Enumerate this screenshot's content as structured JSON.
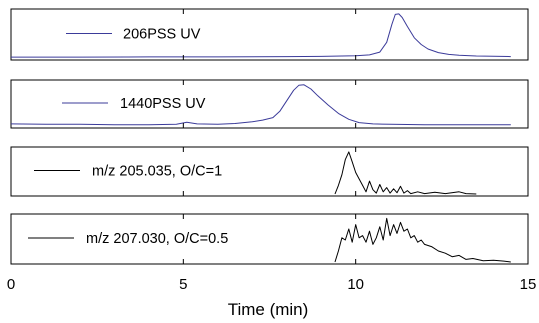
{
  "chart_data": {
    "type": "line",
    "xlabel": "Time (min)",
    "xlim": [
      0,
      15
    ],
    "x_ticks": [
      "0",
      "5",
      "10",
      "15"
    ],
    "panels": [
      {
        "legend": "206PSS UV",
        "color": "#3b3b9a",
        "ylim": [
          0,
          1
        ],
        "x": [
          0,
          2,
          4,
          6,
          8,
          9,
          10,
          10.4,
          10.7,
          10.9,
          11.05,
          11.15,
          11.25,
          11.35,
          11.5,
          11.7,
          11.9,
          12.1,
          12.4,
          12.7,
          13,
          13.5,
          14,
          14.5
        ],
        "y": [
          0.02,
          0.02,
          0.025,
          0.025,
          0.03,
          0.035,
          0.05,
          0.07,
          0.13,
          0.35,
          0.75,
          0.97,
          0.98,
          0.9,
          0.7,
          0.45,
          0.3,
          0.2,
          0.12,
          0.08,
          0.06,
          0.045,
          0.04,
          0.03
        ]
      },
      {
        "legend": "1440PSS UV",
        "color": "#3b3b9a",
        "ylim": [
          0,
          1
        ],
        "x": [
          0,
          1,
          2,
          3,
          4,
          4.8,
          5.1,
          5.4,
          6,
          6.5,
          7,
          7.3,
          7.6,
          7.8,
          8.0,
          8.2,
          8.35,
          8.5,
          8.7,
          8.9,
          9.2,
          9.5,
          9.8,
          10.1,
          10.5,
          11,
          12,
          13,
          14,
          14.5
        ],
        "y": [
          0.05,
          0.04,
          0.04,
          0.03,
          0.03,
          0.04,
          0.09,
          0.05,
          0.04,
          0.06,
          0.1,
          0.14,
          0.2,
          0.35,
          0.6,
          0.85,
          0.97,
          0.98,
          0.88,
          0.72,
          0.5,
          0.3,
          0.16,
          0.08,
          0.05,
          0.04,
          0.03,
          0.03,
          0.03,
          0.03
        ]
      },
      {
        "legend": "m/z 205.035, O/C=1",
        "color": "#000000",
        "ylim": [
          0,
          1
        ],
        "x": [
          9.4,
          9.5,
          9.6,
          9.7,
          9.8,
          9.9,
          10.0,
          10.1,
          10.2,
          10.3,
          10.4,
          10.5,
          10.6,
          10.7,
          10.8,
          10.9,
          11.0,
          11.1,
          11.2,
          11.3,
          11.4,
          11.5,
          11.6,
          11.8,
          12.0,
          12.3,
          12.6,
          13.0,
          13.2,
          13.5
        ],
        "y": [
          0,
          0.2,
          0.45,
          0.8,
          0.98,
          0.75,
          0.5,
          0.35,
          0.2,
          0.05,
          0.3,
          0.1,
          0.02,
          0.22,
          0.05,
          0.15,
          0.02,
          0.12,
          0.03,
          0.18,
          0.02,
          0.08,
          0.01,
          0.05,
          0.01,
          0.04,
          0.01,
          0.05,
          0.01,
          0
        ]
      },
      {
        "legend": "m/z 207.030, O/C=0.5",
        "color": "#000000",
        "ylim": [
          0,
          1
        ],
        "x": [
          9.4,
          9.5,
          9.6,
          9.7,
          9.8,
          9.9,
          10.0,
          10.1,
          10.2,
          10.3,
          10.4,
          10.5,
          10.6,
          10.7,
          10.8,
          10.9,
          11.0,
          11.1,
          11.2,
          11.3,
          11.4,
          11.5,
          11.6,
          11.7,
          11.8,
          11.9,
          12.0,
          12.2,
          12.4,
          12.6,
          12.8,
          13.0,
          13.2,
          13.4,
          13.7,
          14.0,
          14.3,
          14.5
        ],
        "y": [
          0,
          0.25,
          0.55,
          0.5,
          0.75,
          0.45,
          0.85,
          0.55,
          0.6,
          0.45,
          0.7,
          0.4,
          0.55,
          0.8,
          0.5,
          0.99,
          0.6,
          0.85,
          0.65,
          0.9,
          0.7,
          0.75,
          0.55,
          0.6,
          0.45,
          0.5,
          0.4,
          0.35,
          0.25,
          0.2,
          0.12,
          0.15,
          0.06,
          0.08,
          0.03,
          0.04,
          0.02,
          0
        ]
      }
    ]
  }
}
